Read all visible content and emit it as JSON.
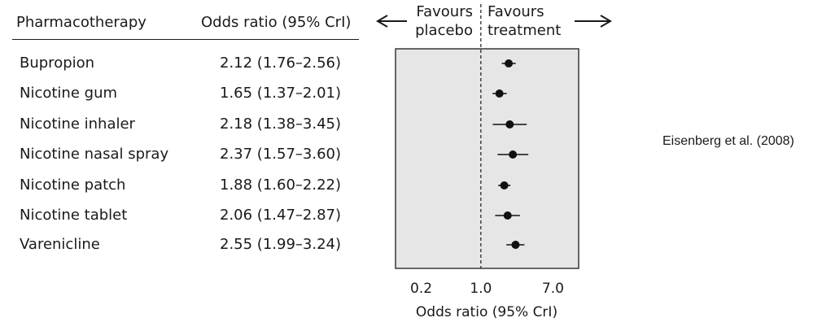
{
  "table": {
    "col_treatment": "Pharmacotherapy",
    "col_or": "Odds ratio (95% CrI)",
    "rows": [
      {
        "name": "Bupropion",
        "or_text": "2.12 (1.76–2.56)"
      },
      {
        "name": "Nicotine gum",
        "or_text": "1.65 (1.37–2.01)"
      },
      {
        "name": "Nicotine inhaler",
        "or_text": "2.18 (1.38–3.45)"
      },
      {
        "name": "Nicotine nasal spray",
        "or_text": "2.37 (1.57–3.60)"
      },
      {
        "name": "Nicotine patch",
        "or_text": "1.88 (1.60–2.22)"
      },
      {
        "name": "Nicotine tablet",
        "or_text": "2.06 (1.47–2.87)"
      },
      {
        "name": "Varenicline",
        "or_text": "2.55 (1.99–3.24)"
      }
    ]
  },
  "favours": {
    "left_line1": "Favours",
    "left_line2": "placebo",
    "right_line1": "Favours",
    "right_line2": "treatment"
  },
  "citation": "Eisenberg et al. (2008)",
  "chart_data": {
    "type": "scatter",
    "subtype": "forest",
    "xlabel": "Odds ratio (95% CrI)",
    "xscale": "log",
    "xlim": [
      0.1,
      14
    ],
    "xticks": [
      0.2,
      1.0,
      7.0
    ],
    "xtick_labels": [
      "0.2",
      "1.0",
      "7.0"
    ],
    "reference_line": 1.0,
    "categories": [
      "Bupropion",
      "Nicotine gum",
      "Nicotine inhaler",
      "Nicotine nasal spray",
      "Nicotine patch",
      "Nicotine tablet",
      "Varenicline"
    ],
    "estimate": [
      2.12,
      1.65,
      2.18,
      2.37,
      1.88,
      2.06,
      2.55
    ],
    "lower": [
      1.76,
      1.37,
      1.38,
      1.57,
      1.6,
      1.47,
      1.99
    ],
    "upper": [
      2.56,
      2.01,
      3.45,
      3.6,
      2.22,
      2.87,
      3.24
    ],
    "panel_color": "#e6e6e6",
    "marker_color": "#111111"
  }
}
